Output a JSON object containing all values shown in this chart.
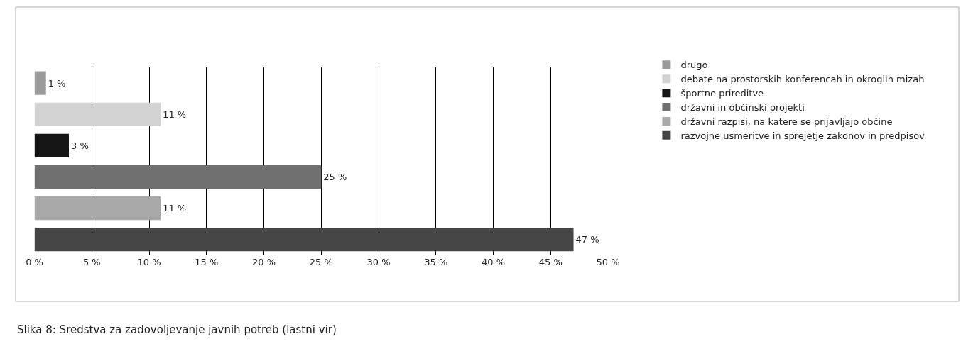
{
  "chart_data": {
    "type": "bar",
    "orientation": "horizontal",
    "categories": [
      null,
      null,
      null,
      null,
      null,
      null
    ],
    "series": [
      {
        "name": "drugo",
        "color": "#9a9a9a",
        "values": [
          1,
          null,
          null,
          null,
          null,
          null
        ],
        "value_labels": [
          "1 %",
          null,
          null,
          null,
          null,
          null
        ]
      },
      {
        "name": "debate na prostorskih konferencah in okroglih mizah",
        "color": "#d2d2d2",
        "values": [
          null,
          11,
          null,
          null,
          null,
          null
        ],
        "value_labels": [
          null,
          "11 %",
          null,
          null,
          null,
          null
        ]
      },
      {
        "name": "športne prireditve",
        "color": "#151515",
        "values": [
          null,
          null,
          3,
          null,
          null,
          null
        ],
        "value_labels": [
          null,
          null,
          "3 %",
          null,
          null,
          null
        ]
      },
      {
        "name": "državni in občinski projekti",
        "color": "#6f6f6f",
        "values": [
          null,
          null,
          null,
          25,
          null,
          null
        ],
        "value_labels": [
          null,
          null,
          null,
          "25 %",
          null,
          null
        ]
      },
      {
        "name": "državni razpisi, na katere se prijavljajo občine",
        "color": "#a8a8a8",
        "values": [
          null,
          null,
          null,
          null,
          11,
          null
        ],
        "value_labels": [
          null,
          null,
          null,
          null,
          "11 %",
          null
        ]
      },
      {
        "name": "razvojne usmeritve in sprejetje zakonov in predpisov",
        "color": "#454545",
        "values": [
          null,
          null,
          null,
          null,
          null,
          47
        ],
        "value_labels": [
          null,
          null,
          null,
          null,
          null,
          "47 %"
        ]
      }
    ],
    "xlim": [
      0,
      50
    ],
    "xticks": [
      {
        "value": 0,
        "label": "0 %"
      },
      {
        "value": 5,
        "label": "5 %"
      },
      {
        "value": 10,
        "label": "10 %"
      },
      {
        "value": 15,
        "label": "15 %"
      },
      {
        "value": 20,
        "label": "20 %"
      },
      {
        "value": 25,
        "label": "25 %"
      },
      {
        "value": 30,
        "label": "30 %"
      },
      {
        "value": 35,
        "label": "35 %"
      },
      {
        "value": 40,
        "label": "40 %"
      },
      {
        "value": 45,
        "label": "45 %"
      },
      {
        "value": 50,
        "label": "50 %"
      }
    ],
    "grid": "x",
    "legend": "right",
    "annotations": [
      "Slika 8: Sredstva za zadovoljevanje javnih potreb (lastni vir)"
    ]
  }
}
